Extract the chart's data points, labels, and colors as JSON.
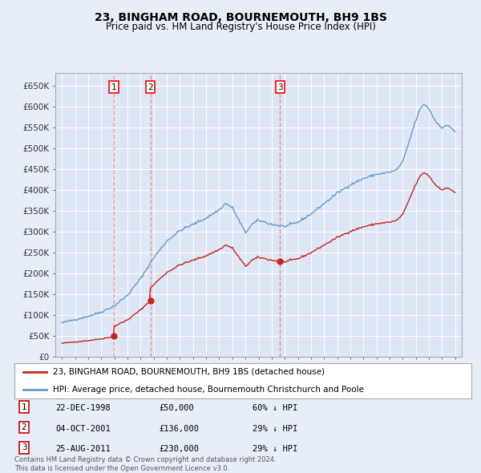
{
  "title": "23, BINGHAM ROAD, BOURNEMOUTH, BH9 1BS",
  "subtitle": "Price paid vs. HM Land Registry's House Price Index (HPI)",
  "background_color": "#e8eef7",
  "plot_bg_color": "#dce6f5",
  "sale_dates": [
    1998.97,
    2001.75,
    2011.65
  ],
  "sale_prices": [
    50000,
    136000,
    230000
  ],
  "sale_labels": [
    "1",
    "2",
    "3"
  ],
  "legend_line1": "23, BINGHAM ROAD, BOURNEMOUTH, BH9 1BS (detached house)",
  "legend_line2": "HPI: Average price, detached house, Bournemouth Christchurch and Poole",
  "table_rows": [
    [
      "1",
      "22-DEC-1998",
      "£50,000",
      "60% ↓ HPI"
    ],
    [
      "2",
      "04-OCT-2001",
      "£136,000",
      "29% ↓ HPI"
    ],
    [
      "3",
      "25-AUG-2011",
      "£230,000",
      "29% ↓ HPI"
    ]
  ],
  "footer": "Contains HM Land Registry data © Crown copyright and database right 2024.\nThis data is licensed under the Open Government Licence v3.0.",
  "hpi_color": "#6699cc",
  "sale_line_color": "#cc2222",
  "sale_marker_color": "#cc2222",
  "dashed_line_color": "#ee8888",
  "ylim": [
    0,
    680000
  ],
  "yticks": [
    0,
    50000,
    100000,
    150000,
    200000,
    250000,
    300000,
    350000,
    400000,
    450000,
    500000,
    550000,
    600000,
    650000
  ],
  "xlim_start": 1994.5,
  "xlim_end": 2025.5,
  "xticks": [
    1995,
    1996,
    1997,
    1998,
    1999,
    2000,
    2001,
    2002,
    2003,
    2004,
    2005,
    2006,
    2007,
    2008,
    2009,
    2010,
    2011,
    2012,
    2013,
    2014,
    2015,
    2016,
    2017,
    2018,
    2019,
    2020,
    2021,
    2022,
    2023,
    2024,
    2025
  ]
}
